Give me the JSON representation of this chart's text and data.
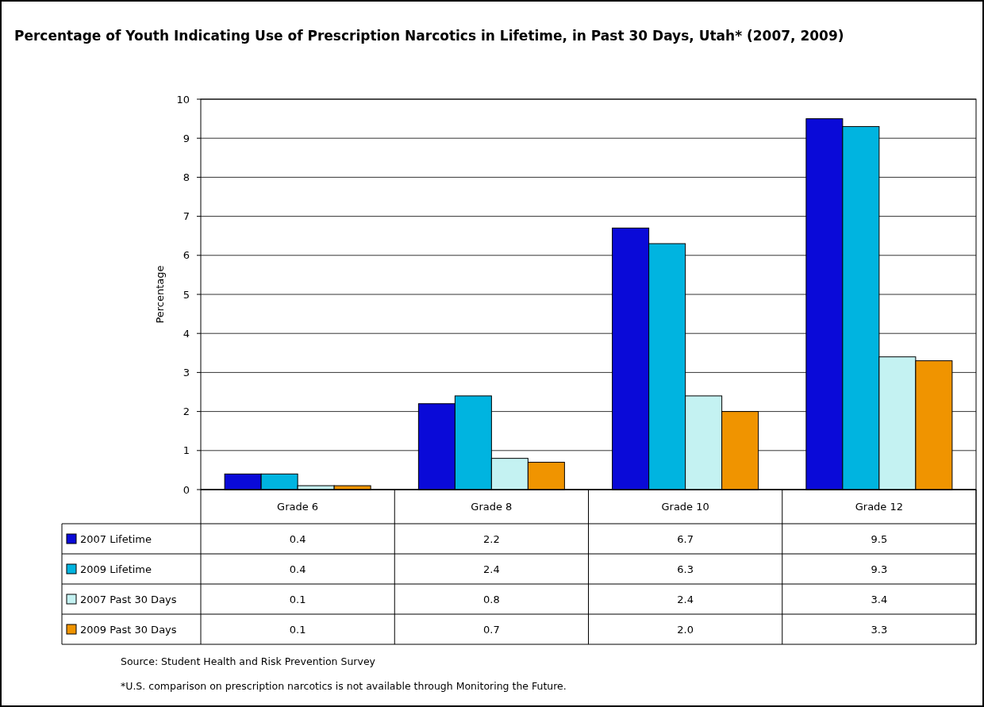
{
  "chart_data": {
    "type": "bar",
    "title": "Percentage of Youth Indicating Use of Prescription Narcotics in Lifetime, in Past 30 Days, Utah* (2007, 2009)",
    "ylabel": "Percentage",
    "categories": [
      "Grade 6",
      "Grade 8",
      "Grade 10",
      "Grade 12"
    ],
    "series": [
      {
        "name": "2007 Lifetime",
        "color": "#0a0ad8",
        "values": [
          0.4,
          2.2,
          6.7,
          9.5
        ],
        "value_labels": [
          "0.4",
          "2.2",
          "6.7",
          "9.5"
        ]
      },
      {
        "name": "2009 Lifetime",
        "color": "#00b4e0",
        "values": [
          0.4,
          2.4,
          6.3,
          9.3
        ],
        "value_labels": [
          "0.4",
          "2.4",
          "6.3",
          "9.3"
        ]
      },
      {
        "name": "2007 Past 30 Days",
        "color": "#c4f2f2",
        "values": [
          0.1,
          0.8,
          2.4,
          3.4
        ],
        "value_labels": [
          "0.1",
          "0.8",
          "2.4",
          "3.4"
        ]
      },
      {
        "name": "2009 Past 30 Days",
        "color": "#f09400",
        "values": [
          0.1,
          0.7,
          2.0,
          3.3
        ],
        "value_labels": [
          "0.1",
          "0.7",
          "2.0",
          "3.3"
        ]
      }
    ],
    "ylim": [
      0,
      10
    ],
    "yticks": [
      0,
      1,
      2,
      3,
      4,
      5,
      6,
      7,
      8,
      9,
      10
    ],
    "grid": "y",
    "legend": "bottom",
    "annotations": [
      "Source: Student Health and Risk Prevention Survey",
      "*U.S. comparison on prescription narcotics is not available through Monitoring the Future."
    ]
  }
}
